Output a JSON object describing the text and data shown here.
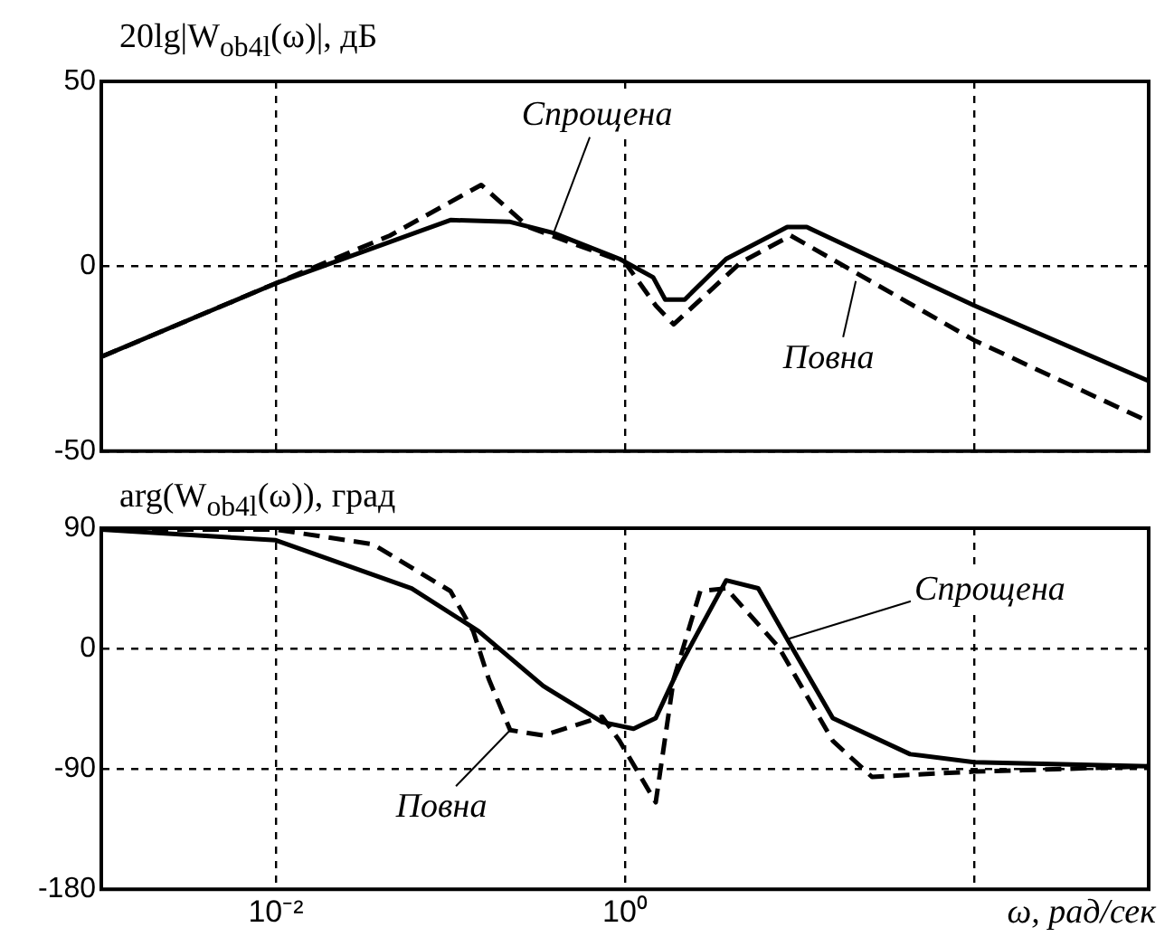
{
  "chart_data": [
    {
      "type": "line",
      "ylabel": "20lg|W$_{ob4l}$(ω)|,  дБ",
      "xlim": [
        0.001,
        1000
      ],
      "xticks": [
        {
          "value": 0.01,
          "label": null
        },
        {
          "value": 1,
          "label": null
        },
        {
          "value": 100,
          "label": null
        }
      ],
      "log": "x",
      "ylim": [
        -50,
        50
      ],
      "yticks": [
        -50,
        0,
        50
      ],
      "grid": true,
      "legend": false,
      "tick_labels": "y",
      "series": [
        {
          "color": "#000000",
          "line_style": "solid",
          "x": [
            0.001,
            0.01,
            0.1,
            0.22,
            0.39,
            0.93,
            1.45,
            1.7,
            2.2,
            3.8,
            8.5,
            11,
            100,
            1000
          ],
          "values": [
            -24.5,
            -4.6,
            12.5,
            12,
            9,
            2,
            -3,
            -9,
            -9,
            2,
            10.6,
            10.6,
            -10.6,
            -31
          ]
        },
        {
          "color": "#000000",
          "line_style": "dashed",
          "x": [
            0.001,
            0.01,
            0.045,
            0.15,
            0.28,
            1.0,
            1.5,
            1.9,
            4.6,
            8.9,
            100,
            1000
          ],
          "values": [
            -24.5,
            -4.6,
            8.3,
            22,
            10.6,
            1,
            -10.6,
            -15.7,
            1,
            8.3,
            -20,
            -42
          ]
        }
      ],
      "annotations": [
        {
          "text": "Спрощена",
          "x": 0.39,
          "y": 9
        },
        {
          "text": "Повна",
          "x": 21,
          "y": -4
        }
      ]
    },
    {
      "type": "line",
      "ylabel": "arg(W$_{ob4l}$(ω)),  град",
      "xlabel": "ω,  рад/сек",
      "xlim": [
        0.001,
        1000
      ],
      "xticks": [
        {
          "value": 0.01,
          "label": "10⁻²"
        },
        {
          "value": 1,
          "label": "10⁰"
        },
        {
          "value": 100,
          "label": null
        }
      ],
      "log": "x",
      "ylim": [
        -180,
        90
      ],
      "yticks": [
        -180,
        -90,
        0,
        90
      ],
      "grid": true,
      "legend": false,
      "series": [
        {
          "color": "#000000",
          "line_style": "solid",
          "x": [
            0.001,
            0.01,
            0.06,
            0.145,
            0.34,
            0.74,
            1.12,
            1.5,
            2.1,
            3.8,
            5.8,
            8.5,
            15.5,
            43,
            100,
            1000
          ],
          "values": [
            89,
            81,
            45,
            13,
            -28,
            -55,
            -60,
            -52,
            -11,
            51,
            45,
            7,
            -52,
            -79,
            -85,
            -88
          ]
        },
        {
          "color": "#000000",
          "line_style": "dashed",
          "x": [
            0.001,
            0.01,
            0.036,
            0.1,
            0.135,
            0.166,
            0.22,
            0.34,
            0.74,
            0.93,
            1.5,
            1.9,
            2.7,
            3.8,
            7.6,
            15.5,
            26,
            100,
            190,
            1000
          ],
          "values": [
            89,
            89,
            78,
            43,
            13,
            -23,
            -61,
            -65,
            -51,
            -69,
            -115,
            -23,
            43,
            45,
            1,
            -69,
            -96,
            -92,
            -91,
            -88
          ]
        }
      ],
      "annotations": [
        {
          "text": "Спрощена",
          "x": 8.5,
          "y": 7
        },
        {
          "text": "Повна",
          "x": 0.22,
          "y": -61
        }
      ]
    }
  ]
}
